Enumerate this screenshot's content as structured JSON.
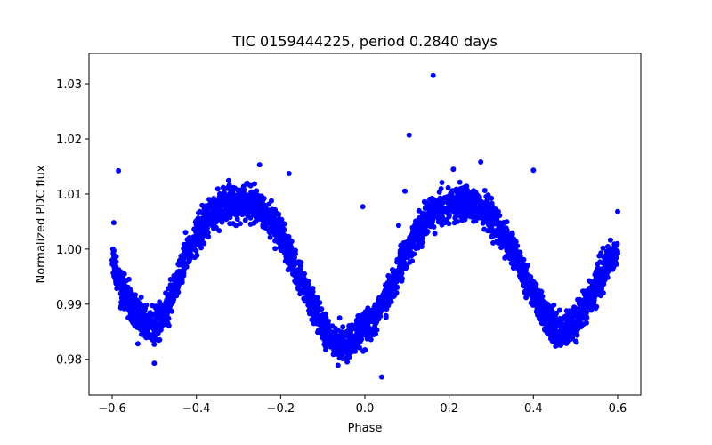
{
  "chart_data": {
    "type": "scatter",
    "title": "TIC 0159444225, period 0.2840 days",
    "xlabel": "Phase",
    "ylabel": "Normalized PDC flux",
    "xlim": [
      -0.655,
      0.655
    ],
    "ylim": [
      0.9735,
      1.0355
    ],
    "xticks": [
      -0.6,
      -0.4,
      -0.2,
      0.0,
      0.2,
      0.4,
      0.6
    ],
    "xtick_labels": [
      "−0.6",
      "−0.4",
      "−0.2",
      "0.0",
      "0.2",
      "0.4",
      "0.6"
    ],
    "yticks": [
      0.98,
      0.99,
      1.0,
      1.01,
      1.02,
      1.03
    ],
    "ytick_labels": [
      "0.98",
      "0.99",
      "1.00",
      "1.01",
      "1.02",
      "1.03"
    ],
    "grid": false,
    "marker_color": "#0000ff",
    "series": [
      {
        "x": [
          -0.6,
          -0.58,
          -0.56,
          -0.54,
          -0.52,
          -0.5,
          -0.48,
          -0.46,
          -0.44,
          -0.42,
          -0.4,
          -0.38,
          -0.36,
          -0.34,
          -0.32,
          -0.3,
          -0.28,
          -0.26,
          -0.24,
          -0.22,
          -0.2,
          -0.18,
          -0.16,
          -0.14,
          -0.12,
          -0.1,
          -0.08,
          -0.06,
          -0.04,
          -0.02,
          0.0,
          0.02,
          0.04,
          0.06,
          0.08,
          0.1,
          0.12,
          0.14,
          0.16,
          0.18,
          0.2,
          0.22,
          0.24,
          0.26,
          0.28,
          0.3,
          0.32,
          0.34,
          0.36,
          0.38,
          0.4,
          0.42,
          0.44,
          0.46,
          0.48,
          0.5,
          0.52,
          0.54,
          0.56,
          0.58,
          0.6
        ],
        "y": [
          0.998,
          0.9935,
          0.9905,
          0.988,
          0.9865,
          0.9862,
          0.9875,
          0.991,
          0.9955,
          0.9995,
          1.0025,
          1.005,
          1.0067,
          1.0078,
          1.0084,
          1.0086,
          1.0084,
          1.0078,
          1.0066,
          1.0048,
          1.0025,
          0.9995,
          0.996,
          0.9925,
          0.989,
          0.9862,
          0.9838,
          0.982,
          0.9828,
          0.9845,
          0.9858,
          0.987,
          0.9895,
          0.9928,
          0.9962,
          0.9995,
          1.0023,
          1.0046,
          1.0064,
          1.0077,
          1.0083,
          1.0085,
          1.0084,
          1.0079,
          1.007,
          1.0056,
          1.0037,
          1.0012,
          0.9982,
          0.995,
          0.9918,
          0.9889,
          0.9865,
          0.985,
          0.9852,
          0.9865,
          0.989,
          0.992,
          0.9952,
          0.9978,
          0.9992
        ]
      },
      {
        "x": [
          -0.585,
          0.162,
          0.105,
          0.08,
          -0.005,
          0.095,
          0.4,
          -0.5,
          0.6,
          -0.596,
          0.275,
          0.21,
          -0.25,
          -0.18,
          0.04,
          -0.06
        ],
        "y": [
          1.0142,
          1.0315,
          1.0207,
          1.0043,
          1.0077,
          1.0105,
          1.0143,
          0.9793,
          1.0068,
          1.0048,
          1.0158,
          1.0145,
          1.0153,
          1.0137,
          0.9768,
          0.9875
        ]
      }
    ]
  }
}
